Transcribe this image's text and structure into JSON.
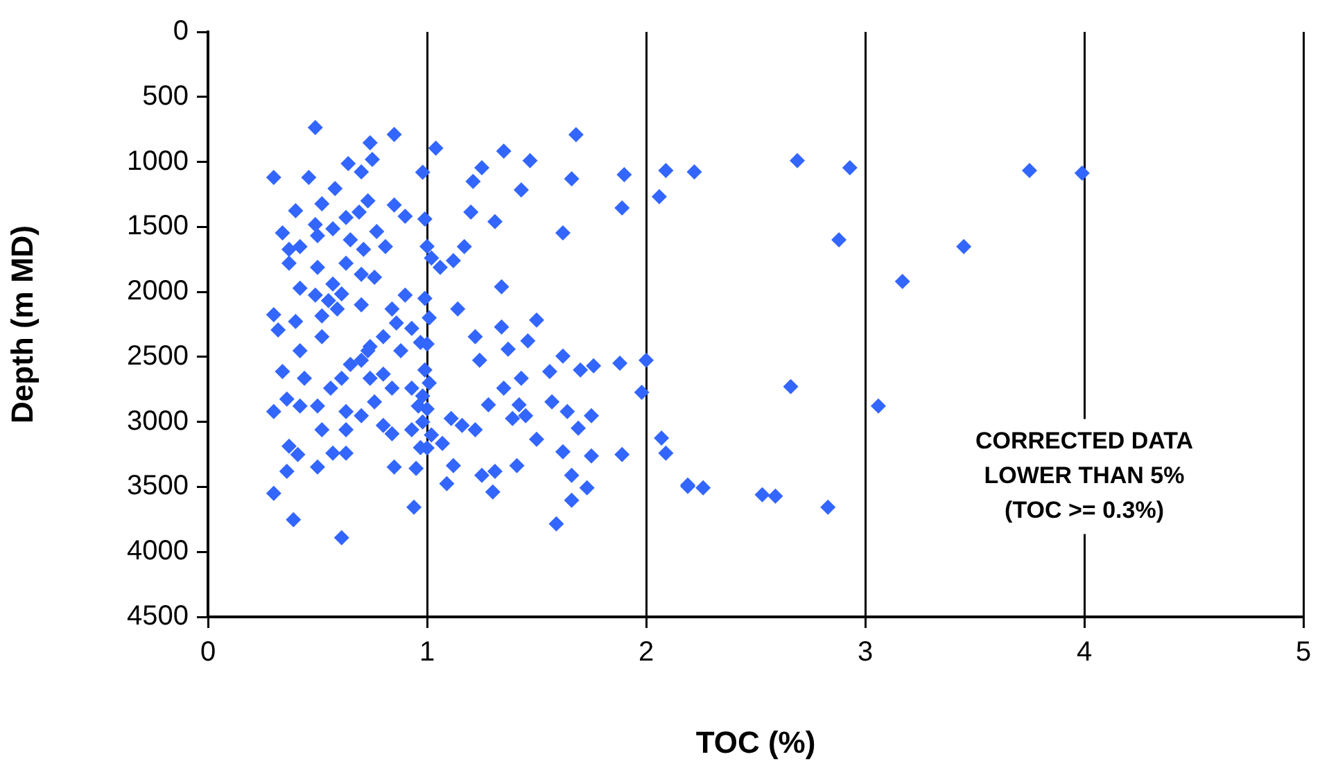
{
  "chart_data": {
    "type": "scatter",
    "xlabel": "TOC (%)",
    "ylabel": "Depth (m MD)",
    "annotations": [
      "CORRECTED DATA\nLOWER THAN 5%\n(TOC >= 0.3%)"
    ],
    "xlim": [
      0,
      5
    ],
    "xticks": [
      0,
      1,
      2,
      3,
      4,
      5
    ],
    "ylim": [
      4500,
      0
    ],
    "yticks": [
      0,
      500,
      1000,
      1500,
      2000,
      2500,
      3000,
      3500,
      4000,
      4500
    ],
    "grid": "x",
    "marker": "diamond",
    "legend": false,
    "series": [
      {
        "color": "#3366ff",
        "x": [
          1.68,
          1.04,
          1.35,
          1.47,
          1.25,
          1.21,
          1.66,
          1.9,
          1.43,
          2.09,
          2.06,
          1.89,
          1.2,
          1.31,
          1.62,
          1.17,
          1.06,
          1.12,
          1.34,
          1.14,
          1.5,
          1.34,
          1.46,
          1.22,
          1.24,
          1.37,
          1.62,
          1.76,
          1.7,
          1.88,
          2.0,
          1.56,
          1.43,
          1.35,
          1.98,
          1.28,
          1.42,
          1.57,
          1.64,
          1.75,
          1.69,
          1.45,
          1.39,
          1.5,
          1.11,
          1.16,
          1.22,
          1.07,
          1.12,
          1.25,
          1.31,
          1.41,
          1.62,
          1.75,
          1.89,
          2.07,
          2.09,
          1.09,
          1.3,
          1.66,
          1.73,
          1.66,
          1.59,
          2.19,
          2.69,
          2.93,
          2.22,
          3.75,
          3.99,
          2.88,
          3.45,
          3.17,
          2.66,
          3.06,
          2.19,
          2.26,
          2.53,
          2.59,
          2.83,
          0.49,
          0.85,
          0.74,
          0.75,
          0.64,
          0.7,
          0.3,
          0.46,
          0.58,
          0.73,
          0.85,
          0.9,
          0.4,
          0.52,
          0.49,
          0.34,
          0.37,
          0.42,
          0.37,
          0.5,
          0.57,
          0.63,
          0.69,
          0.77,
          0.65,
          0.71,
          0.81,
          0.5,
          0.63,
          0.7,
          0.76,
          0.57,
          0.61,
          0.55,
          0.49,
          0.42,
          0.3,
          0.32,
          0.4,
          0.52,
          0.59,
          0.7,
          0.52,
          0.42,
          0.84,
          0.9,
          0.86,
          0.93,
          0.8,
          0.74,
          0.7,
          0.65,
          0.73,
          0.88,
          0.97,
          0.34,
          0.44,
          0.36,
          0.3,
          0.42,
          0.5,
          0.56,
          0.61,
          0.63,
          0.74,
          0.8,
          0.84,
          0.93,
          0.96,
          0.76,
          0.7,
          0.8,
          0.84,
          0.63,
          0.52,
          0.93,
          0.97,
          0.37,
          0.41,
          0.57,
          0.63,
          0.5,
          0.36,
          0.85,
          0.95,
          0.3,
          0.39,
          0.61,
          0.94,
          0.98,
          0.99,
          1.0,
          1.02,
          0.99,
          1.01,
          1.0,
          0.99,
          1.01,
          0.98,
          1.0,
          0.98,
          1.02,
          1.0
        ],
        "values": [
          790,
          895,
          917,
          991,
          1045,
          1150,
          1130,
          1098,
          1215,
          1066,
          1268,
          1354,
          1386,
          1460,
          1546,
          1652,
          1812,
          1759,
          1961,
          2132,
          2217,
          2270,
          2377,
          2345,
          2526,
          2441,
          2494,
          2569,
          2601,
          2548,
          2526,
          2612,
          2665,
          2740,
          2772,
          2868,
          2868,
          2846,
          2921,
          2953,
          3049,
          2953,
          2974,
          3134,
          2974,
          3027,
          3060,
          3166,
          3337,
          3411,
          3380,
          3337,
          3230,
          3262,
          3251,
          3124,
          3241,
          3475,
          3539,
          3411,
          3507,
          3603,
          3784,
          3486,
          991,
          1045,
          1077,
          1066,
          1087,
          1599,
          1652,
          1919,
          2729,
          2878,
          3496,
          3507,
          3560,
          3571,
          3656,
          736,
          789,
          853,
          981,
          1013,
          1077,
          1119,
          1119,
          1205,
          1300,
          1332,
          1418,
          1375,
          1322,
          1482,
          1546,
          1673,
          1652,
          1780,
          1567,
          1514,
          1428,
          1386,
          1535,
          1599,
          1673,
          1652,
          1812,
          1780,
          1865,
          1887,
          1940,
          2015,
          2068,
          2025,
          1972,
          2175,
          2292,
          2228,
          2185,
          2132,
          2100,
          2345,
          2452,
          2132,
          2025,
          2239,
          2281,
          2345,
          2420,
          2526,
          2558,
          2452,
          2452,
          2388,
          2612,
          2665,
          2825,
          2921,
          2878,
          2878,
          2740,
          2665,
          2921,
          2665,
          2633,
          2740,
          2740,
          2878,
          2846,
          2953,
          3027,
          3091,
          3060,
          3060,
          3060,
          3198,
          3187,
          3251,
          3241,
          3241,
          3347,
          3380,
          3347,
          3358,
          3550,
          3752,
          3891,
          3656,
          1080,
          1440,
          1650,
          1740,
          2050,
          2200,
          2400,
          2600,
          2700,
          2800,
          2900,
          3000,
          3100,
          3200
        ]
      }
    ]
  }
}
